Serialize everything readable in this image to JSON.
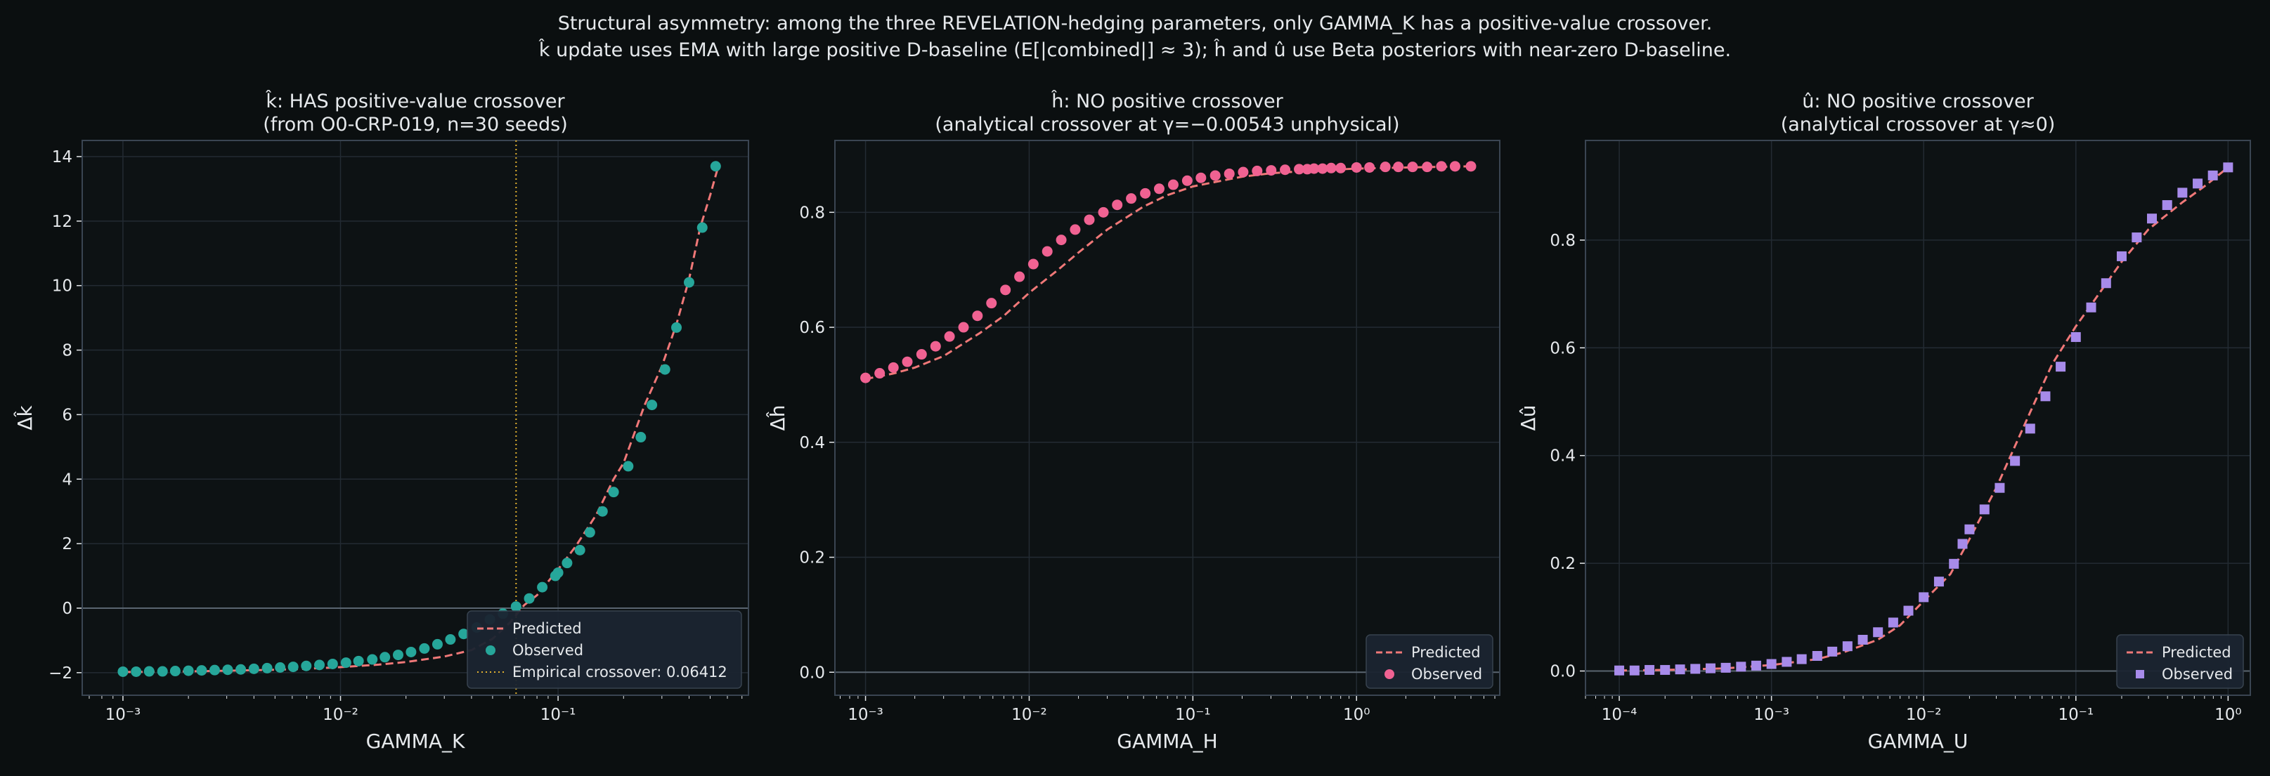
{
  "suptitle": {
    "line1": "Structural asymmetry: among the three REVELATION-hedging parameters, only GAMMA_K has a positive-value crossover.",
    "line2": "k̂ update uses EMA with large positive D-baseline (E[|combined|] ≈ 3); ĥ and û use Beta posteriors with near-zero D-baseline."
  },
  "colors": {
    "background": "#0b0f10",
    "axes_bg": "#0d1214",
    "spine": "#3a4552",
    "grid": "#232b33",
    "text": "#e6e9ec",
    "predicted": "#f07878",
    "k_observed": "#26a69a",
    "h_observed": "#f06292",
    "u_observed": "#a78bea",
    "crossover": "#e0b030",
    "legend_bg": "#1b2431"
  },
  "chart_data": [
    {
      "type": "scatter",
      "title_line1": "k̂: HAS positive-value crossover",
      "title_line2": "(from O0-CRP-019, n=30 seeds)",
      "xlabel": "GAMMA_K",
      "ylabel": "Δk̂",
      "xscale": "log",
      "xlim": [
        0.00065,
        0.75
      ],
      "ylim": [
        -2.7,
        14.5
      ],
      "xticks": [
        0.001,
        0.01,
        0.1
      ],
      "xtick_labels": [
        "10⁻³",
        "10⁻²",
        "10⁻¹"
      ],
      "yticks": [
        -2,
        0,
        2,
        4,
        6,
        8,
        10,
        12,
        14
      ],
      "ytick_labels": [
        "−2",
        "0",
        "2",
        "4",
        "6",
        "8",
        "10",
        "12",
        "14"
      ],
      "grid": true,
      "zero_line": true,
      "legend_position": "lower-right",
      "crossover": {
        "x": 0.06412,
        "label": "Empirical crossover: 0.06412"
      },
      "series": [
        {
          "name": "Predicted",
          "style": "dashed",
          "x": [
            0.001,
            0.0015,
            0.002,
            0.003,
            0.005,
            0.007,
            0.01,
            0.015,
            0.02,
            0.03,
            0.04,
            0.05,
            0.06,
            0.07,
            0.08,
            0.1,
            0.12,
            0.15,
            0.18,
            0.2,
            0.25,
            0.3,
            0.35,
            0.4,
            0.45,
            0.5,
            0.55
          ],
          "values": [
            -1.98,
            -1.97,
            -1.96,
            -1.94,
            -1.91,
            -1.88,
            -1.83,
            -1.75,
            -1.67,
            -1.5,
            -1.3,
            -0.95,
            -0.45,
            0.1,
            0.4,
            1.2,
            1.9,
            2.9,
            4.0,
            4.5,
            6.3,
            7.5,
            8.8,
            10.2,
            11.8,
            12.8,
            13.8
          ]
        },
        {
          "name": "Observed",
          "marker": "circle",
          "x": [
            0.001,
            0.00115,
            0.00132,
            0.00152,
            0.00174,
            0.002,
            0.0023,
            0.00264,
            0.00303,
            0.00348,
            0.004,
            0.0046,
            0.00528,
            0.00606,
            0.00696,
            0.008,
            0.0092,
            0.0106,
            0.0121,
            0.014,
            0.016,
            0.0184,
            0.0211,
            0.0243,
            0.0279,
            0.032,
            0.0368,
            0.0423,
            0.0486,
            0.0558,
            0.0641,
            0.0737,
            0.0846,
            0.0972,
            0.1,
            0.11,
            0.126,
            0.14,
            0.16,
            0.18,
            0.21,
            0.24,
            0.27,
            0.31,
            0.35,
            0.4,
            0.46,
            0.53
          ],
          "values": [
            -1.97,
            -1.97,
            -1.96,
            -1.96,
            -1.95,
            -1.94,
            -1.93,
            -1.92,
            -1.91,
            -1.9,
            -1.88,
            -1.86,
            -1.84,
            -1.82,
            -1.79,
            -1.76,
            -1.73,
            -1.69,
            -1.64,
            -1.59,
            -1.52,
            -1.45,
            -1.36,
            -1.25,
            -1.12,
            -0.97,
            -0.8,
            -0.6,
            -0.35,
            -0.17,
            0.05,
            0.3,
            0.65,
            1.0,
            1.1,
            1.4,
            1.8,
            2.35,
            3.0,
            3.6,
            4.4,
            5.3,
            6.3,
            7.4,
            8.7,
            10.1,
            11.8,
            13.7
          ]
        }
      ]
    },
    {
      "type": "scatter",
      "title_line1": "ĥ: NO positive crossover",
      "title_line2": "(analytical crossover at γ=−0.00543 unphysical)",
      "xlabel": "GAMMA_H",
      "ylabel": "Δĥ",
      "xscale": "log",
      "xlim": [
        0.00065,
        7.5
      ],
      "ylim": [
        -0.04,
        0.925
      ],
      "xticks": [
        0.001,
        0.01,
        0.1,
        1
      ],
      "xtick_labels": [
        "10⁻³",
        "10⁻²",
        "10⁻¹",
        "10⁰"
      ],
      "yticks": [
        0,
        0.2,
        0.4,
        0.6,
        0.8
      ],
      "ytick_labels": [
        "0.0",
        "0.2",
        "0.4",
        "0.6",
        "0.8"
      ],
      "grid": true,
      "zero_line": true,
      "legend_position": "lower-right",
      "series": [
        {
          "name": "Predicted",
          "style": "dashed",
          "x": [
            0.001,
            0.0015,
            0.002,
            0.003,
            0.005,
            0.007,
            0.01,
            0.015,
            0.02,
            0.03,
            0.05,
            0.07,
            0.1,
            0.15,
            0.2,
            0.3,
            0.5,
            0.7,
            1,
            2,
            3,
            5
          ],
          "values": [
            0.51,
            0.52,
            0.53,
            0.55,
            0.59,
            0.62,
            0.66,
            0.7,
            0.73,
            0.77,
            0.81,
            0.83,
            0.845,
            0.855,
            0.862,
            0.868,
            0.872,
            0.874,
            0.876,
            0.878,
            0.879,
            0.88
          ]
        },
        {
          "name": "Observed",
          "marker": "circle",
          "x": [
            0.001,
            0.00122,
            0.00148,
            0.0018,
            0.0022,
            0.00268,
            0.00326,
            0.00397,
            0.00483,
            0.00588,
            0.00716,
            0.00872,
            0.0106,
            0.0129,
            0.0157,
            0.0191,
            0.0233,
            0.0284,
            0.0345,
            0.042,
            0.0512,
            0.0623,
            0.0759,
            0.0924,
            0.112,
            0.137,
            0.167,
            0.203,
            0.247,
            0.301,
            0.366,
            0.446,
            0.5,
            0.55,
            0.62,
            0.7,
            0.8,
            1.0,
            1.2,
            1.5,
            1.8,
            2.2,
            2.7,
            3.3,
            4.0,
            5.0
          ],
          "values": [
            0.512,
            0.52,
            0.53,
            0.54,
            0.553,
            0.567,
            0.584,
            0.6,
            0.62,
            0.642,
            0.665,
            0.688,
            0.71,
            0.732,
            0.752,
            0.77,
            0.787,
            0.8,
            0.813,
            0.824,
            0.833,
            0.841,
            0.848,
            0.855,
            0.86,
            0.864,
            0.867,
            0.87,
            0.872,
            0.873,
            0.874,
            0.875,
            0.875,
            0.876,
            0.876,
            0.877,
            0.877,
            0.878,
            0.878,
            0.879,
            0.879,
            0.879,
            0.879,
            0.88,
            0.88,
            0.88
          ]
        }
      ]
    },
    {
      "type": "scatter",
      "title_line1": "û: NO positive crossover",
      "title_line2": "(analytical crossover at γ≈0)",
      "xlabel": "GAMMA_U",
      "ylabel": "Δû",
      "xscale": "log",
      "xlim": [
        6e-05,
        1.4
      ],
      "ylim": [
        -0.045,
        0.985
      ],
      "xticks": [
        0.0001,
        0.001,
        0.01,
        0.1,
        1
      ],
      "xtick_labels": [
        "10⁻⁴",
        "10⁻³",
        "10⁻²",
        "10⁻¹",
        "10⁰"
      ],
      "yticks": [
        0,
        0.2,
        0.4,
        0.6,
        0.8
      ],
      "ytick_labels": [
        "0.0",
        "0.2",
        "0.4",
        "0.6",
        "0.8"
      ],
      "grid": true,
      "zero_line": true,
      "legend_position": "lower-right",
      "series": [
        {
          "name": "Predicted",
          "style": "dashed",
          "x": [
            0.0001,
            0.0002,
            0.0005,
            0.001,
            0.002,
            0.003,
            0.005,
            0.007,
            0.01,
            0.015,
            0.02,
            0.03,
            0.05,
            0.07,
            0.1,
            0.15,
            0.2,
            0.3,
            0.5,
            0.7,
            1.0
          ],
          "values": [
            0.001,
            0.002,
            0.005,
            0.011,
            0.022,
            0.035,
            0.058,
            0.085,
            0.13,
            0.18,
            0.245,
            0.34,
            0.48,
            0.57,
            0.64,
            0.71,
            0.76,
            0.82,
            0.87,
            0.9,
            0.935
          ]
        },
        {
          "name": "Observed",
          "marker": "square",
          "x": [
            0.0001,
            0.000126,
            0.000158,
            0.0002,
            0.000251,
            0.000316,
            0.000398,
            0.000501,
            0.000631,
            0.000794,
            0.001,
            0.00126,
            0.00158,
            0.002,
            0.00251,
            0.00316,
            0.00398,
            0.00501,
            0.00631,
            0.00794,
            0.01,
            0.0126,
            0.0158,
            0.018,
            0.02,
            0.0251,
            0.0316,
            0.0398,
            0.0501,
            0.0631,
            0.0794,
            0.1,
            0.126,
            0.158,
            0.2,
            0.251,
            0.316,
            0.398,
            0.501,
            0.631,
            0.794,
            1.0
          ],
          "values": [
            0.001,
            0.001,
            0.002,
            0.002,
            0.003,
            0.004,
            0.005,
            0.006,
            0.008,
            0.01,
            0.013,
            0.017,
            0.022,
            0.028,
            0.036,
            0.046,
            0.058,
            0.072,
            0.09,
            0.112,
            0.137,
            0.166,
            0.199,
            0.236,
            0.263,
            0.3,
            0.34,
            0.39,
            0.45,
            0.51,
            0.565,
            0.62,
            0.675,
            0.72,
            0.77,
            0.805,
            0.84,
            0.865,
            0.888,
            0.905,
            0.92,
            0.935
          ]
        }
      ]
    }
  ]
}
